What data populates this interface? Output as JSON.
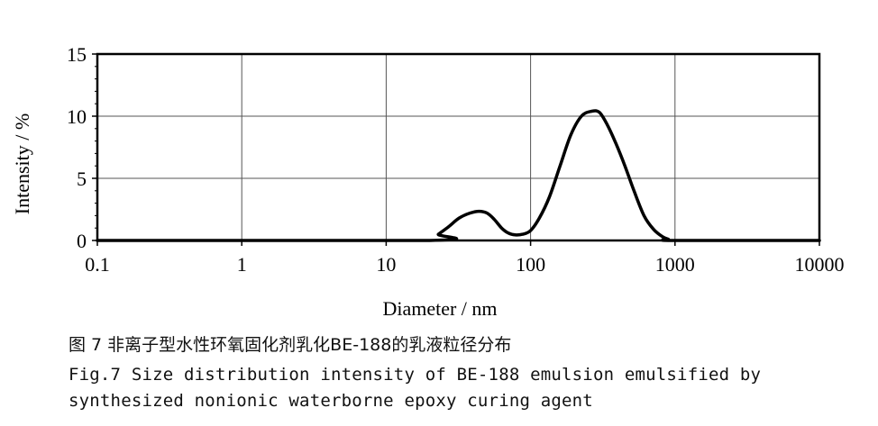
{
  "chart_data": {
    "type": "line",
    "xlabel": "Diameter / nm",
    "ylabel": "Intensity / %",
    "x_scale": "log",
    "xlim": [
      0.1,
      10000
    ],
    "ylim": [
      0,
      15
    ],
    "x_ticks": [
      "0.1",
      "1",
      "10",
      "100",
      "1000",
      "10000"
    ],
    "y_ticks": [
      "0",
      "5",
      "10",
      "15"
    ],
    "grid": true,
    "series": [
      {
        "x": [
          0.1,
          20,
          23,
          27,
          32,
          38,
          44,
          50,
          56,
          63,
          70,
          78,
          88,
          100,
          115,
          135,
          160,
          190,
          225,
          265,
          300,
          340,
          390,
          450,
          520,
          610,
          710,
          820,
          900,
          1000,
          10000
        ],
        "y": [
          0,
          0,
          0.5,
          1.1,
          1.8,
          2.2,
          2.35,
          2.2,
          1.7,
          1.0,
          0.6,
          0.45,
          0.5,
          0.8,
          1.8,
          3.5,
          6.0,
          8.5,
          10.0,
          10.4,
          10.3,
          9.3,
          7.8,
          6.0,
          4.0,
          2.0,
          0.9,
          0.3,
          0.1,
          0,
          0
        ]
      }
    ]
  },
  "caption": {
    "cn": "图 7 非离子型水性环氧固化剂乳化BE-188的乳液粒径分布",
    "en_line1": "Fig.7 Size distribution intensity of BE-188 emulsion emulsified by",
    "en_line2": "synthesized nonionic waterborne epoxy curing agent"
  }
}
